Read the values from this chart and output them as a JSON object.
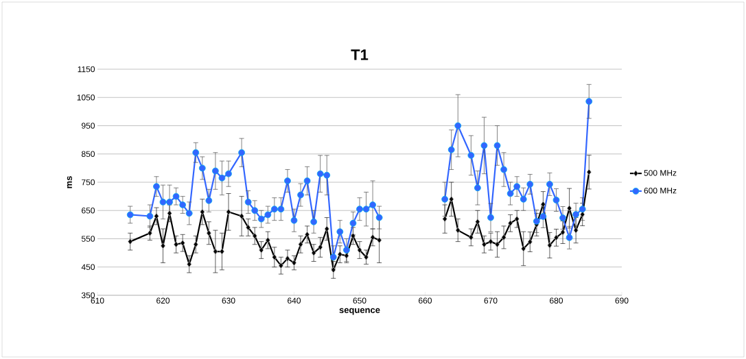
{
  "chart_data": {
    "type": "line",
    "title": "T1",
    "xlabel": "sequence",
    "ylabel": "ms",
    "x": [
      615,
      618,
      619,
      620,
      621,
      622,
      623,
      624,
      625,
      626,
      627,
      628,
      629,
      630,
      632,
      633,
      634,
      635,
      636,
      637,
      638,
      639,
      640,
      641,
      642,
      643,
      644,
      645,
      646,
      647,
      648,
      649,
      650,
      651,
      652,
      653,
      654,
      663,
      664,
      665,
      667,
      668,
      669,
      670,
      671,
      672,
      673,
      674,
      675,
      676,
      677,
      678,
      679,
      680,
      681,
      682,
      683,
      684,
      685
    ],
    "series": [
      {
        "name": "500 MHz",
        "color": "#000000",
        "marker": "diamond",
        "values": [
          540,
          570,
          630,
          525,
          640,
          530,
          535,
          460,
          530,
          645,
          570,
          505,
          505,
          645,
          630,
          590,
          560,
          510,
          545,
          485,
          455,
          480,
          465,
          530,
          565,
          500,
          520,
          585,
          440,
          495,
          490,
          560,
          510,
          485,
          555,
          545,
          null,
          620,
          690,
          580,
          555,
          610,
          530,
          540,
          530,
          555,
          605,
          620,
          515,
          539,
          600,
          672,
          527,
          554,
          573,
          658,
          580,
          636,
          786
        ],
        "errors": [
          30,
          25,
          30,
          60,
          30,
          30,
          30,
          30,
          30,
          45,
          40,
          75,
          65,
          65,
          70,
          30,
          30,
          30,
          30,
          35,
          30,
          30,
          25,
          30,
          30,
          30,
          35,
          40,
          30,
          30,
          25,
          30,
          30,
          25,
          30,
          80,
          null,
          50,
          60,
          40,
          30,
          40,
          30,
          30,
          45,
          40,
          30,
          30,
          60,
          35,
          40,
          45,
          45,
          30,
          40,
          70,
          45,
          40,
          60
        ]
      },
      {
        "name": "600 MHz",
        "color": "#3366ff",
        "marker": "circle",
        "values": [
          635,
          630,
          735,
          680,
          680,
          700,
          670,
          640,
          855,
          800,
          685,
          790,
          765,
          780,
          855,
          680,
          650,
          620,
          635,
          655,
          655,
          755,
          615,
          705,
          755,
          610,
          780,
          775,
          485,
          575,
          510,
          605,
          655,
          655,
          670,
          625,
          null,
          690,
          865,
          950,
          845,
          730,
          880,
          625,
          880,
          795,
          710,
          735,
          690,
          743,
          612,
          629,
          743,
          687,
          624,
          554,
          636,
          655,
          1036
        ],
        "errors": [
          30,
          40,
          35,
          60,
          60,
          30,
          30,
          40,
          35,
          40,
          40,
          65,
          60,
          45,
          50,
          40,
          35,
          30,
          30,
          40,
          40,
          40,
          40,
          40,
          50,
          40,
          65,
          70,
          40,
          40,
          40,
          40,
          40,
          60,
          85,
          40,
          null,
          60,
          70,
          110,
          70,
          60,
          100,
          50,
          70,
          60,
          40,
          35,
          40,
          35,
          40,
          40,
          40,
          40,
          40,
          40,
          40,
          40,
          60
        ]
      }
    ],
    "xlim": [
      610,
      690
    ],
    "xticks": [
      610,
      620,
      630,
      640,
      650,
      660,
      670,
      680,
      690
    ],
    "ylim": [
      350,
      1150
    ],
    "yticks": [
      350,
      450,
      550,
      650,
      750,
      850,
      950,
      1050,
      1150
    ],
    "grid": "y",
    "legend": "right"
  }
}
